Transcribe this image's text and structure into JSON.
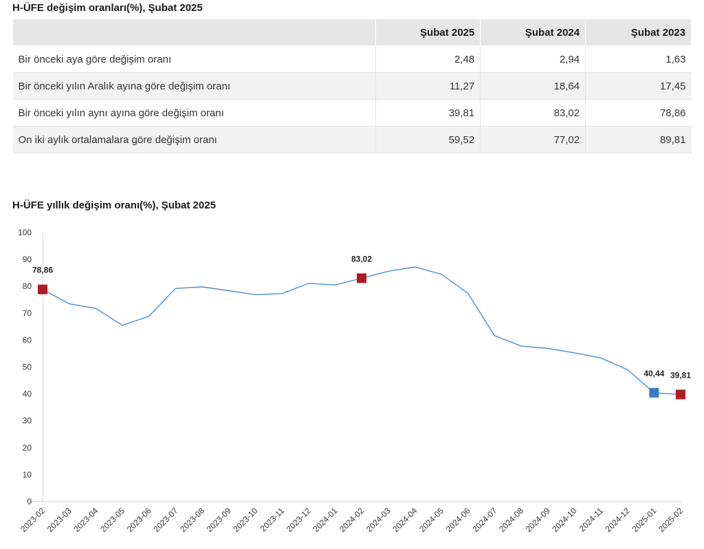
{
  "table": {
    "title": "H-ÜFE değişim oranları(%), Şubat 2025",
    "columns": [
      "",
      "Şubat 2025",
      "Şubat 2024",
      "Şubat 2023"
    ],
    "rows": [
      {
        "label": "Bir önceki aya göre değişim oranı",
        "values": [
          "2,48",
          "2,94",
          "1,63"
        ]
      },
      {
        "label": "Bir önceki yılın Aralık ayına göre değişim oranı",
        "values": [
          "11,27",
          "18,64",
          "17,45"
        ]
      },
      {
        "label": "Bir önceki yılın aynı ayına göre değişim oranı",
        "values": [
          "39,81",
          "83,02",
          "78,86"
        ]
      },
      {
        "label": "On iki aylık ortalamalara göre değişim oranı",
        "values": [
          "59,52",
          "77,02",
          "89,81"
        ]
      }
    ]
  },
  "chart_data": {
    "type": "line",
    "title": "H-ÜFE yıllık değişim oranı(%), Şubat 2025",
    "xlabel": "",
    "ylabel": "",
    "ylim": [
      0,
      100
    ],
    "yticks": [
      0,
      10,
      20,
      30,
      40,
      50,
      60,
      70,
      80,
      90,
      100
    ],
    "grid": false,
    "line_color": "#4a90c8",
    "x": [
      "2023-02",
      "2023-03",
      "2023-04",
      "2023-05",
      "2023-06",
      "2023-07",
      "2023-08",
      "2023-09",
      "2023-10",
      "2023-11",
      "2023-12",
      "2024-01",
      "2024-02",
      "2024-03",
      "2024-04",
      "2024-05",
      "2024-06",
      "2024-07",
      "2024-08",
      "2024-09",
      "2024-10",
      "2024-11",
      "2024-12",
      "2025-01",
      "2025-02"
    ],
    "values": [
      78.86,
      73.5,
      71.8,
      65.5,
      68.9,
      79.2,
      79.8,
      78.4,
      76.9,
      77.3,
      81.1,
      80.5,
      83.02,
      85.6,
      87.2,
      84.5,
      77.4,
      61.7,
      57.8,
      56.9,
      55.3,
      53.4,
      49.0,
      40.44,
      39.81
    ],
    "highlights": [
      {
        "index": 0,
        "label": "78,86",
        "color": "#b01c22"
      },
      {
        "index": 12,
        "label": "83,02",
        "color": "#b01c22"
      },
      {
        "index": 23,
        "label": "40,44",
        "color": "#3a7fc0"
      },
      {
        "index": 24,
        "label": "39,81",
        "color": "#b01c22"
      }
    ]
  }
}
